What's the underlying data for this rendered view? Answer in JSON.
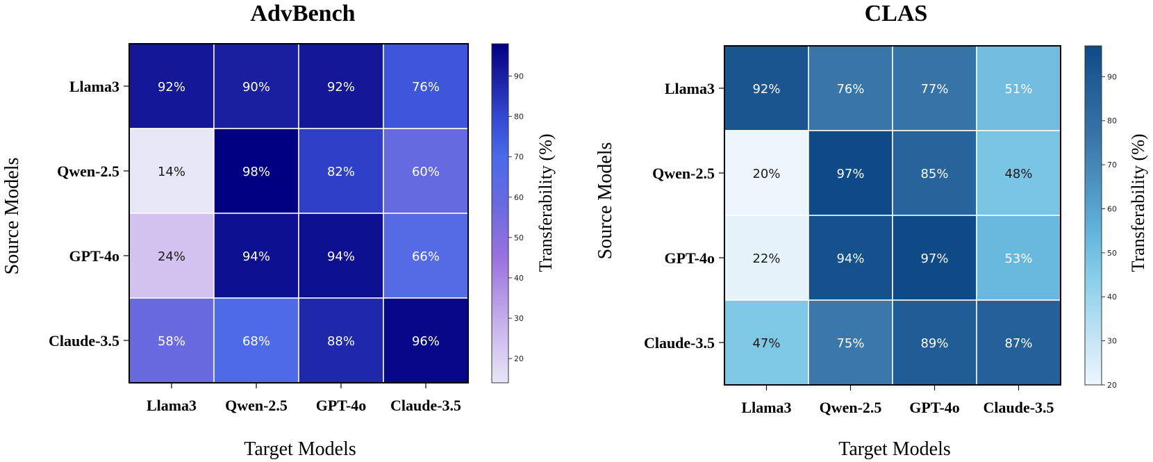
{
  "chart_data": [
    {
      "type": "heatmap",
      "title": "AdvBench",
      "xlabel": "Target Models",
      "ylabel": "Source Models",
      "x_categories": [
        "Llama3",
        "Qwen-2.5",
        "GPT-4o",
        "Claude-3.5"
      ],
      "y_categories": [
        "Llama3",
        "Qwen-2.5",
        "GPT-4o",
        "Claude-3.5"
      ],
      "values": [
        [
          92,
          90,
          92,
          76
        ],
        [
          14,
          98,
          82,
          60
        ],
        [
          24,
          94,
          94,
          66
        ],
        [
          58,
          68,
          88,
          96
        ]
      ],
      "value_suffix": "%",
      "colorbar": {
        "label": "Transferability (%)",
        "range": [
          14,
          98
        ],
        "ticks": [
          20,
          30,
          40,
          50,
          60,
          70,
          80,
          90
        ],
        "colormap": [
          {
            "v": 14,
            "color": "#e7e6f7"
          },
          {
            "v": 28,
            "color": "#c8b4ec"
          },
          {
            "v": 45,
            "color": "#9a72de"
          },
          {
            "v": 58,
            "color": "#6a6ae0"
          },
          {
            "v": 70,
            "color": "#4a6ae8"
          },
          {
            "v": 80,
            "color": "#3448d0"
          },
          {
            "v": 90,
            "color": "#1a1fa0"
          },
          {
            "v": 98,
            "color": "#000080"
          }
        ],
        "text_dark_below": 30
      }
    },
    {
      "type": "heatmap",
      "title": "CLAS",
      "xlabel": "Target Models",
      "ylabel": "Source Models",
      "x_categories": [
        "Llama3",
        "Qwen-2.5",
        "GPT-4o",
        "Claude-3.5"
      ],
      "y_categories": [
        "Llama3",
        "Qwen-2.5",
        "GPT-4o",
        "Claude-3.5"
      ],
      "values": [
        [
          92,
          76,
          77,
          51
        ],
        [
          20,
          97,
          85,
          48
        ],
        [
          22,
          94,
          97,
          53
        ],
        [
          47,
          75,
          89,
          87
        ]
      ],
      "value_suffix": "%",
      "colorbar": {
        "label": "Transferability (%)",
        "range": [
          20,
          97
        ],
        "ticks": [
          20,
          30,
          40,
          50,
          60,
          70,
          80,
          90
        ],
        "colormap": [
          {
            "v": 20,
            "color": "#eef6fd"
          },
          {
            "v": 30,
            "color": "#c6e6f5"
          },
          {
            "v": 45,
            "color": "#85cde8"
          },
          {
            "v": 55,
            "color": "#62b3da"
          },
          {
            "v": 75,
            "color": "#3a78ab"
          },
          {
            "v": 88,
            "color": "#225e97"
          },
          {
            "v": 97,
            "color": "#0f4a86"
          }
        ],
        "text_dark_below": 50
      }
    }
  ]
}
